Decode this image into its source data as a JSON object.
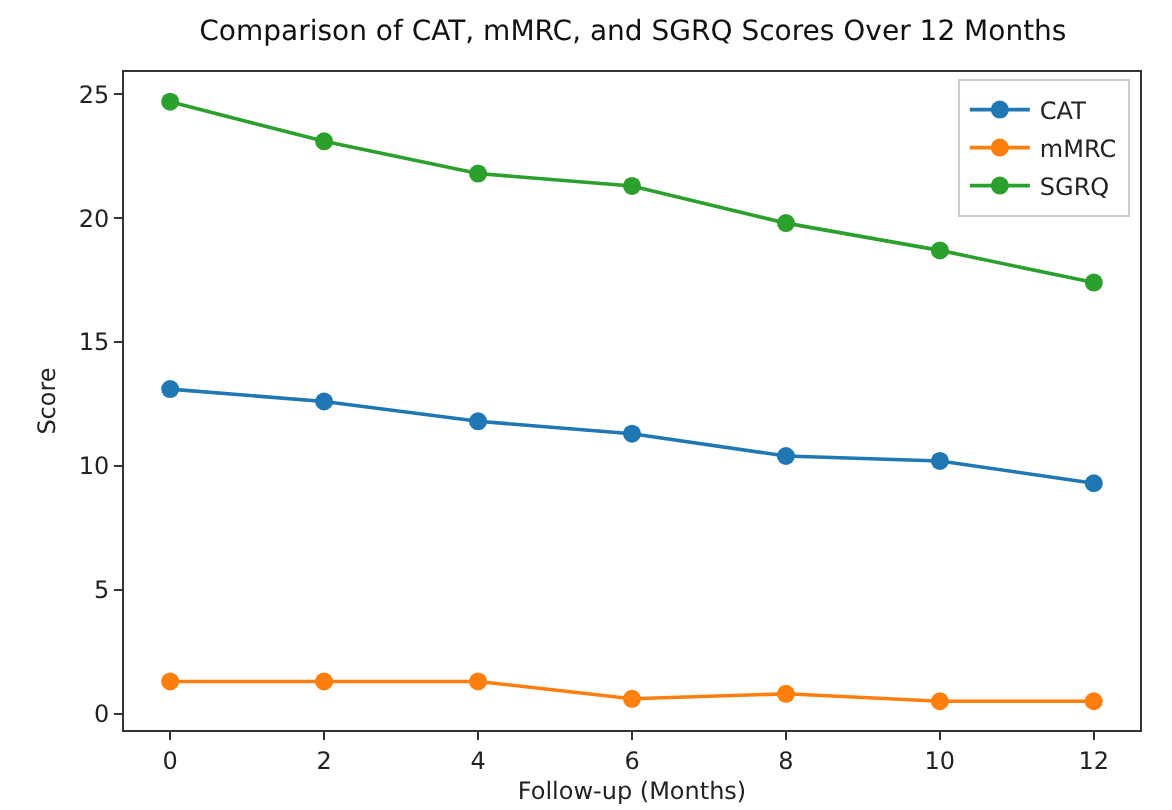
{
  "chart_data": {
    "type": "line",
    "title": "Comparison of CAT, mMRC, and SGRQ Scores Over 12 Months",
    "xlabel": "Follow-up (Months)",
    "ylabel": "Score",
    "x": [
      0,
      2,
      4,
      6,
      8,
      10,
      12
    ],
    "series": [
      {
        "name": "CAT",
        "color": "#1f77b4",
        "values": [
          13.1,
          12.6,
          11.8,
          11.3,
          10.4,
          10.2,
          9.3
        ]
      },
      {
        "name": "mMRC",
        "color": "#ff7f0e",
        "values": [
          1.3,
          1.3,
          1.3,
          0.6,
          0.8,
          0.5,
          0.5
        ]
      },
      {
        "name": "SGRQ",
        "color": "#2ca02c",
        "values": [
          24.7,
          23.1,
          21.8,
          21.3,
          19.8,
          18.7,
          17.4
        ]
      }
    ],
    "xlim": [
      -0.6,
      12.6
    ],
    "xticks": [
      0,
      2,
      4,
      6,
      8,
      10,
      12
    ],
    "ylim": [
      -0.66,
      25.9
    ],
    "yticks": [
      0,
      5,
      10,
      15,
      20,
      25
    ],
    "grid": false,
    "legend": "top right",
    "marker": "circle",
    "line_style": "solid"
  }
}
